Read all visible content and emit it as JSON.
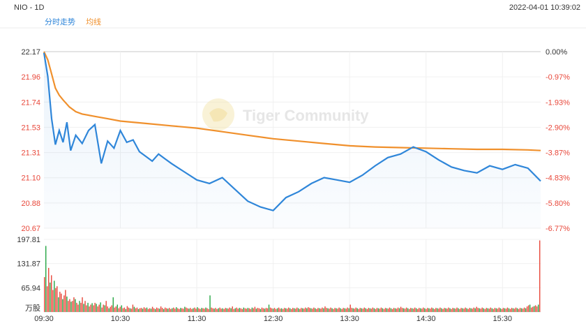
{
  "header": {
    "symbol": "NIO - 1D",
    "datetime": "2022-04-01 10:39:02"
  },
  "legend": {
    "price": "分时走势",
    "avg": "均线"
  },
  "colors": {
    "price": "#2f86d9",
    "avg": "#f0902c",
    "up": "#e8473a",
    "down": "#27a644",
    "pct_neg": "#e8473a"
  },
  "watermark": {
    "text": "Tiger Community",
    "logo": "tiger-logo-icon"
  },
  "chart_data": [
    {
      "type": "line",
      "title": "",
      "x_time_labels": [
        "09:30",
        "10:30",
        "11:30",
        "12:30",
        "13:30",
        "14:30",
        "15:30"
      ],
      "y_price_ticks": [
        "22.17",
        "21.96",
        "21.74",
        "21.53",
        "21.31",
        "21.10",
        "20.88",
        "20.67"
      ],
      "y_pct_ticks": [
        "0.00%",
        "-0.97%",
        "-1.93%",
        "-2.90%",
        "-3.87%",
        "-4.83%",
        "-5.80%",
        "-6.77%"
      ],
      "ylim": [
        20.67,
        22.17
      ],
      "prev_close": 22.17,
      "series": [
        {
          "name": "分时走势",
          "x": [
            0,
            3,
            6,
            9,
            12,
            15,
            18,
            21,
            25,
            30,
            35,
            40,
            45,
            50,
            55,
            60,
            65,
            70,
            75,
            80,
            85,
            90,
            95,
            100,
            110,
            120,
            130,
            140,
            150,
            160,
            170,
            180,
            190,
            200,
            210,
            220,
            230,
            240,
            250,
            260,
            270,
            280,
            290,
            300,
            310,
            320,
            330,
            340,
            350,
            360,
            370,
            380,
            390
          ],
          "y": [
            22.16,
            21.96,
            21.6,
            21.38,
            21.5,
            21.4,
            21.57,
            21.33,
            21.46,
            21.39,
            21.5,
            21.55,
            21.22,
            21.41,
            21.35,
            21.5,
            21.4,
            21.42,
            21.32,
            21.28,
            21.24,
            21.3,
            21.26,
            21.22,
            21.15,
            21.08,
            21.05,
            21.1,
            21.0,
            20.9,
            20.85,
            20.82,
            20.93,
            20.98,
            21.05,
            21.1,
            21.08,
            21.06,
            21.12,
            21.2,
            21.27,
            21.3,
            21.36,
            21.32,
            21.25,
            21.19,
            21.16,
            21.14,
            21.2,
            21.17,
            21.21,
            21.18,
            21.07
          ]
        },
        {
          "name": "均线",
          "x": [
            0,
            3,
            6,
            9,
            12,
            15,
            20,
            25,
            30,
            40,
            50,
            60,
            80,
            100,
            120,
            140,
            160,
            180,
            200,
            220,
            240,
            260,
            280,
            300,
            320,
            340,
            360,
            380,
            390
          ],
          "y": [
            22.17,
            22.1,
            21.98,
            21.86,
            21.8,
            21.76,
            21.7,
            21.66,
            21.64,
            21.62,
            21.6,
            21.58,
            21.56,
            21.54,
            21.52,
            21.49,
            21.46,
            21.43,
            21.41,
            21.39,
            21.37,
            21.36,
            21.355,
            21.35,
            21.345,
            21.34,
            21.34,
            21.335,
            21.33
          ]
        }
      ]
    },
    {
      "type": "bar",
      "title": "",
      "ylabel": "万股",
      "y_ticks": [
        "197.81",
        "131.87",
        "65.94"
      ],
      "ylim": [
        0,
        197.81
      ],
      "values": [
        95,
        180,
        70,
        120,
        80,
        100,
        60,
        85,
        65,
        70,
        40,
        55,
        50,
        35,
        45,
        60,
        42,
        30,
        35,
        28,
        30,
        40,
        35,
        25,
        20,
        30,
        25,
        40,
        22,
        30,
        18,
        25,
        15,
        20,
        24,
        18,
        25,
        22,
        15,
        20,
        26,
        12,
        20,
        18,
        30,
        15,
        10,
        14,
        18,
        40,
        12,
        15,
        20,
        10,
        14,
        18,
        10,
        12,
        8,
        16,
        12,
        10,
        9,
        20,
        14,
        10,
        12,
        8,
        10,
        11,
        9,
        13,
        10,
        12,
        8,
        10,
        9,
        14,
        10,
        8,
        12,
        10,
        9,
        15,
        11,
        8,
        12,
        10,
        9,
        11,
        8,
        10,
        12,
        9,
        13,
        10,
        8,
        11,
        10,
        9,
        14,
        12,
        10,
        9,
        11,
        8,
        10,
        12,
        9,
        13,
        10,
        8,
        11,
        10,
        9,
        12,
        10,
        8,
        45,
        12,
        10,
        9,
        11,
        8,
        10,
        12,
        9,
        10,
        8,
        11,
        10,
        9,
        12,
        10,
        15,
        8,
        10,
        12,
        9,
        11,
        10,
        8,
        12,
        10,
        9,
        11,
        10,
        8,
        12,
        10,
        14,
        9,
        11,
        10,
        8,
        12,
        10,
        9,
        11,
        10,
        20,
        12,
        10,
        9,
        11,
        8,
        10,
        12,
        9,
        10,
        8,
        11,
        10,
        9,
        12,
        10,
        8,
        11,
        10,
        9,
        12,
        10,
        8,
        11,
        10,
        9,
        12,
        10,
        13,
        11,
        10,
        9,
        12,
        10,
        8,
        11,
        10,
        9,
        12,
        10,
        15,
        11,
        10,
        9,
        12,
        10,
        8,
        11,
        10,
        9,
        12,
        10,
        8,
        11,
        10,
        9,
        12,
        10,
        20,
        11,
        10,
        9,
        12,
        10,
        8,
        11,
        10,
        9,
        12,
        10,
        8,
        11,
        10,
        9,
        12,
        10,
        8,
        11,
        10,
        9,
        12,
        10,
        8,
        11,
        10,
        9,
        12,
        10,
        8,
        11,
        10,
        9,
        12,
        10,
        14,
        11,
        10,
        9,
        12,
        10,
        8,
        11,
        10,
        9,
        12,
        10,
        8,
        11,
        10,
        9,
        12,
        10,
        8,
        11,
        10,
        9,
        12,
        10,
        8,
        11,
        10,
        9,
        12,
        10,
        8,
        11,
        10,
        9,
        12,
        10,
        8,
        11,
        10,
        9,
        12,
        10,
        8,
        11,
        10,
        9,
        12,
        10,
        8,
        11,
        10,
        9,
        12,
        10,
        14,
        11,
        10,
        9,
        12,
        10,
        8,
        11,
        10,
        9,
        12,
        10,
        8,
        11,
        10,
        9,
        12,
        10,
        8,
        11,
        10,
        9,
        12,
        10,
        8,
        11,
        10,
        9,
        12,
        10,
        8,
        11,
        10,
        9,
        12,
        10,
        15,
        18,
        20,
        12,
        14,
        16,
        18,
        15,
        20,
        195
      ]
    }
  ]
}
